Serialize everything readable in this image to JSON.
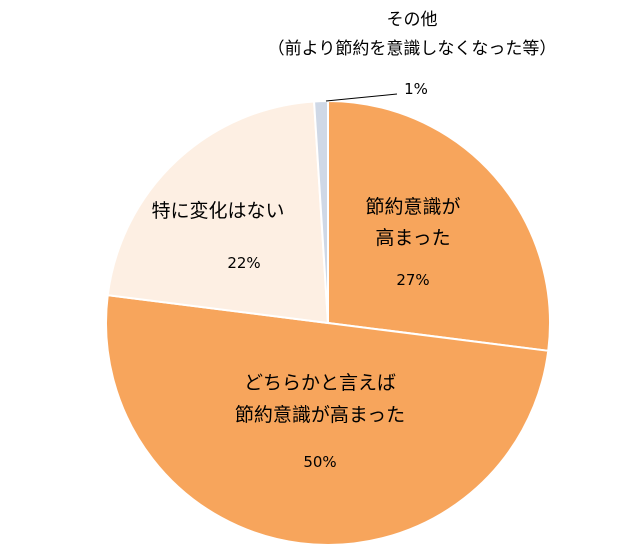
{
  "chart_data": {
    "type": "pie",
    "start_angle_deg": 0,
    "direction": "clockwise",
    "slices": [
      {
        "label_lines": [
          "節約意識が",
          "高まった"
        ],
        "value": 27,
        "value_label": "27%",
        "color": "#f7a55c"
      },
      {
        "label_lines": [
          "どちらかと言えば",
          "節約意識が高まった"
        ],
        "value": 50,
        "value_label": "50%",
        "color": "#f7a55c"
      },
      {
        "label_lines": [
          "特に変化はない"
        ],
        "value": 22,
        "value_label": "22%",
        "color": "#fdefe3"
      },
      {
        "label_lines": [
          "その他",
          "（前より節約を意識しなくなった等）"
        ],
        "value": 1,
        "value_label": "1%",
        "color": "#cfd8e6"
      }
    ],
    "slice_border_color": "#ffffff",
    "legend": "none"
  }
}
